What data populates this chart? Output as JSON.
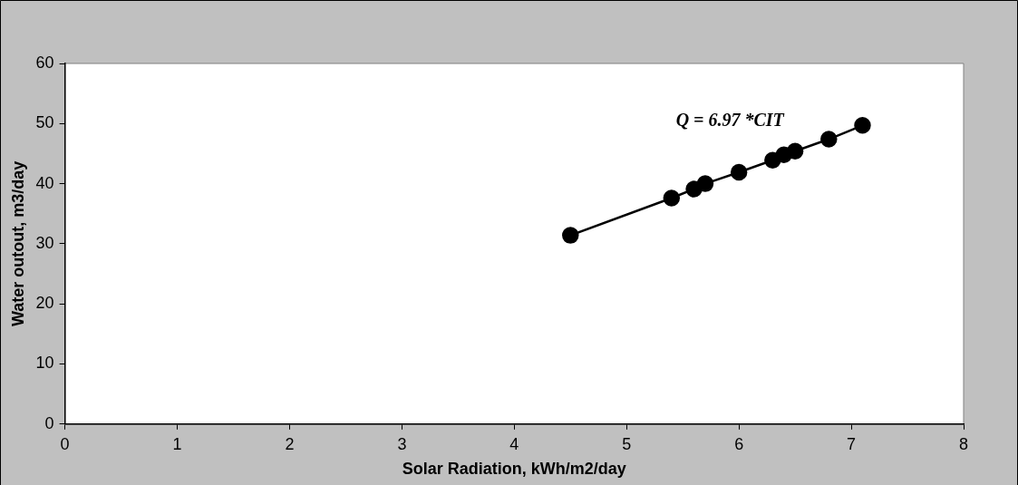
{
  "chart_data": {
    "type": "line",
    "xlabel": "Solar Radiation, kWh/m2/day",
    "ylabel": "Water outout, m3/day",
    "x": [
      4.5,
      5.4,
      5.6,
      5.7,
      6.0,
      6.3,
      6.4,
      6.5,
      6.8,
      7.1
    ],
    "series": [
      {
        "color": "#000000",
        "values": [
          31.4,
          37.6,
          39.1,
          40.0,
          41.9,
          43.9,
          44.8,
          45.4,
          47.4,
          49.7
        ]
      }
    ],
    "xlim": [
      0,
      8
    ],
    "xticks": [
      0,
      1,
      2,
      3,
      4,
      5,
      6,
      7,
      8
    ],
    "ylim": [
      0,
      60
    ],
    "yticks": [
      0,
      10,
      20,
      30,
      40,
      50,
      60
    ],
    "grid": false,
    "legend": false,
    "marker": "circle",
    "line_style": "solid",
    "annotations": [
      "Q = 6.97 *CIT"
    ]
  }
}
